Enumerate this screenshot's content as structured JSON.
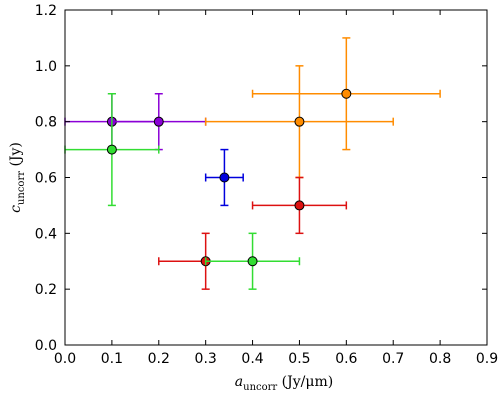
{
  "chart_data": {
    "type": "scatter",
    "xlabel": {
      "var": "a",
      "sub": "uncorr",
      "unit": "(Jy/μm)"
    },
    "ylabel": {
      "var": "c",
      "sub": "uncorr",
      "unit": "(Jy)"
    },
    "xlim": [
      0.0,
      0.9
    ],
    "ylim": [
      0.0,
      1.2
    ],
    "xticks": [
      "0.0",
      "0.1",
      "0.2",
      "0.3",
      "0.4",
      "0.5",
      "0.6",
      "0.7",
      "0.8",
      "0.9"
    ],
    "yticks": [
      "0.0",
      "0.2",
      "0.4",
      "0.6",
      "0.8",
      "1.0",
      "1.2"
    ],
    "grid": false,
    "points": [
      {
        "x": 0.1,
        "y": 0.8,
        "xerr": [
          0.1,
          0.1
        ],
        "yerr": [
          0.1,
          0.1
        ],
        "color": "#8b00d6"
      },
      {
        "x": 0.2,
        "y": 0.8,
        "xerr": [
          0.1,
          0.1
        ],
        "yerr": [
          0.1,
          0.1
        ],
        "color": "#8b00d6"
      },
      {
        "x": 0.1,
        "y": 0.7,
        "xerr": [
          0.1,
          0.1
        ],
        "yerr": [
          0.2,
          0.2
        ],
        "color": "#32dd32"
      },
      {
        "x": 0.34,
        "y": 0.6,
        "xerr": [
          0.04,
          0.04
        ],
        "yerr": [
          0.1,
          0.1
        ],
        "color": "#0000dd"
      },
      {
        "x": 0.5,
        "y": 0.8,
        "xerr": [
          0.2,
          0.2
        ],
        "yerr": [
          0.2,
          0.2
        ],
        "color": "#ff8c00"
      },
      {
        "x": 0.6,
        "y": 0.9,
        "xerr": [
          0.2,
          0.2
        ],
        "yerr": [
          0.2,
          0.2
        ],
        "color": "#ff8c00"
      },
      {
        "x": 0.5,
        "y": 0.5,
        "xerr": [
          0.1,
          0.1
        ],
        "yerr": [
          0.1,
          0.1
        ],
        "color": "#dd1111"
      },
      {
        "x": 0.3,
        "y": 0.3,
        "xerr": [
          0.1,
          0.1
        ],
        "yerr": [
          0.1,
          0.1
        ],
        "color": "#dd1111"
      },
      {
        "x": 0.4,
        "y": 0.3,
        "xerr": [
          0.1,
          0.1
        ],
        "yerr": [
          0.1,
          0.1
        ],
        "color": "#32dd32"
      }
    ]
  }
}
